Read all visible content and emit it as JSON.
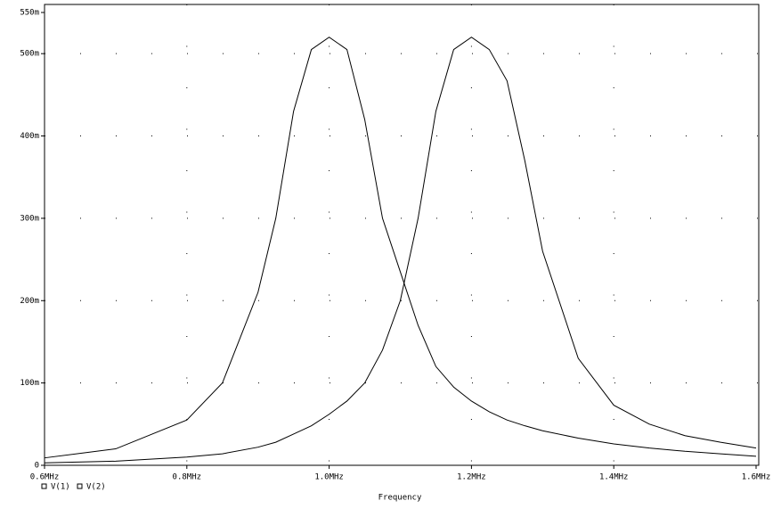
{
  "chart_data": {
    "type": "line",
    "x_label": "Frequency",
    "x": [
      0.6,
      0.7,
      0.8,
      0.85,
      0.9,
      0.925,
      0.95,
      0.975,
      1.0,
      1.025,
      1.05,
      1.075,
      1.1,
      1.125,
      1.15,
      1.175,
      1.2,
      1.225,
      1.25,
      1.275,
      1.3,
      1.35,
      1.4,
      1.45,
      1.5,
      1.55,
      1.6
    ],
    "series": [
      {
        "name": "V(1)",
        "color": "#000000",
        "values": [
          0.009,
          0.02,
          0.055,
          0.1,
          0.21,
          0.3,
          0.43,
          0.505,
          0.52,
          0.505,
          0.42,
          0.3,
          0.235,
          0.17,
          0.12,
          0.095,
          0.078,
          0.065,
          0.055,
          0.048,
          0.042,
          0.033,
          0.026,
          0.021,
          0.017,
          0.014,
          0.011
        ]
      },
      {
        "name": "V(2)",
        "color": "#000000",
        "values": [
          0.003,
          0.005,
          0.01,
          0.014,
          0.022,
          0.028,
          0.038,
          0.048,
          0.062,
          0.078,
          0.1,
          0.14,
          0.2,
          0.3,
          0.43,
          0.505,
          0.52,
          0.505,
          0.467,
          0.37,
          0.26,
          0.13,
          0.073,
          0.05,
          0.036,
          0.028,
          0.021
        ]
      }
    ],
    "xlim": [
      0.6,
      1.6
    ],
    "xticks": [
      {
        "value": 0.6,
        "label": "0.6MHz"
      },
      {
        "value": 0.8,
        "label": "0.8MHz"
      },
      {
        "value": 1.0,
        "label": "1.0MHz"
      },
      {
        "value": 1.2,
        "label": "1.2MHz"
      },
      {
        "value": 1.4,
        "label": "1.4MHz"
      },
      {
        "value": 1.6,
        "label": "1.6MHz"
      }
    ],
    "ylim": [
      0,
      0.55
    ],
    "yticks": [
      0,
      {
        "value": 0.1,
        "label": "100m"
      },
      {
        "value": 0.2,
        "label": "200m"
      },
      {
        "value": 0.3,
        "label": "300m"
      },
      {
        "value": 0.4,
        "label": "400m"
      },
      {
        "value": 0.5,
        "label": "500m"
      },
      {
        "value": 0.55,
        "label": "550m"
      }
    ],
    "grid": true
  }
}
